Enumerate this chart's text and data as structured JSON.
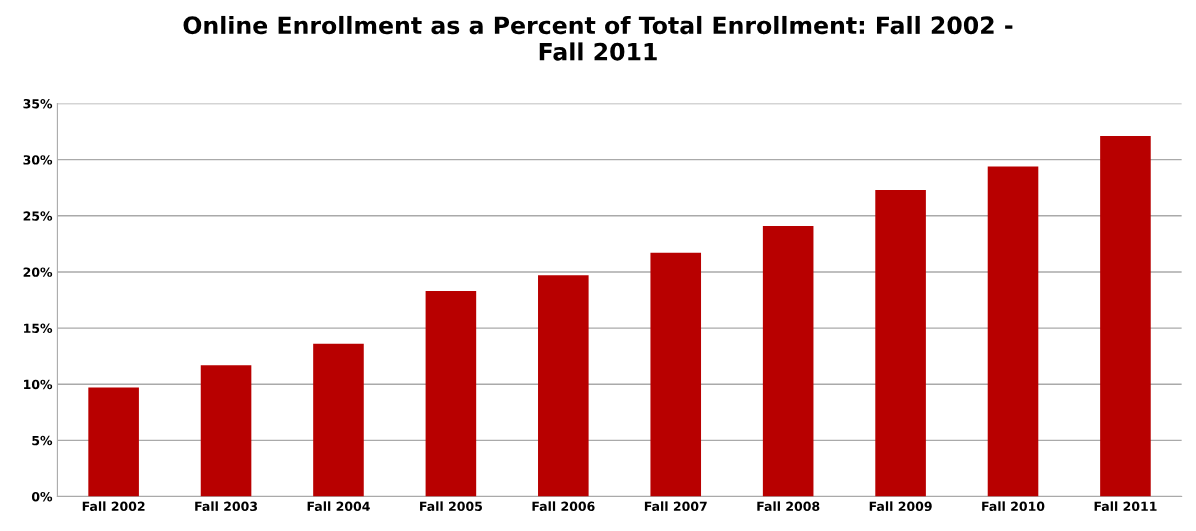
{
  "chart_data": {
    "type": "bar",
    "title": "Online Enrollment as a Percent of Total Enrollment: Fall 2002 -\nFall 2011",
    "categories": [
      "Fall 2002",
      "Fall 2003",
      "Fall 2004",
      "Fall 2005",
      "Fall 2006",
      "Fall 2007",
      "Fall 2008",
      "Fall 2009",
      "Fall 2010",
      "Fall 2011"
    ],
    "values": [
      9.7,
      11.7,
      13.6,
      18.3,
      19.7,
      21.7,
      24.1,
      27.3,
      29.4,
      32.1
    ],
    "color": "#b80000",
    "ylim": [
      0,
      35
    ],
    "yticks": [
      {
        "value": 0,
        "label": "0%"
      },
      {
        "value": 5,
        "label": "5%"
      },
      {
        "value": 10,
        "label": "10%"
      },
      {
        "value": 15,
        "label": "15%"
      },
      {
        "value": 20,
        "label": "20%"
      },
      {
        "value": 25,
        "label": "25%"
      },
      {
        "value": 30,
        "label": "30%"
      },
      {
        "value": 35,
        "label": "35%"
      }
    ],
    "grid": "y"
  }
}
